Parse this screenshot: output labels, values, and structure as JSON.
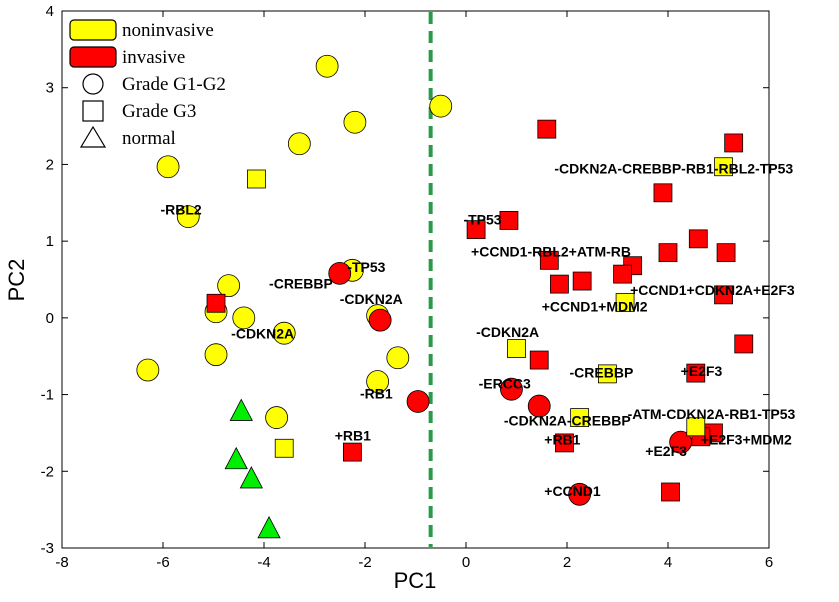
{
  "chart_data": {
    "type": "scatter",
    "xlabel": "PC1",
    "ylabel": "PC2",
    "xlim": [
      -8,
      6
    ],
    "ylim": [
      -3,
      4
    ],
    "xticks": [
      "-8",
      "-6",
      "-4",
      "-2",
      "0",
      "2",
      "4",
      "6"
    ],
    "yticks": [
      "-3",
      "-2",
      "-1",
      "0",
      "1",
      "2",
      "3",
      "4"
    ],
    "xtick_values": [
      -8,
      -6,
      -4,
      -2,
      0,
      2,
      4,
      6
    ],
    "ytick_values": [
      -3,
      -2,
      -1,
      0,
      1,
      2,
      3,
      4
    ],
    "grid": false,
    "divider": {
      "x": -0.7,
      "color": "#2a9a4a",
      "style": "dashed"
    },
    "colors": {
      "noninvasive": "#ffff00",
      "invasive": "#ff0000",
      "normal": "#00ee00"
    },
    "legend": {
      "placement": "top-left",
      "entries": [
        {
          "label": "noninvasive",
          "swatch": "noninvasive"
        },
        {
          "label": "invasive",
          "swatch": "invasive"
        },
        {
          "label": "Grade G1-G2",
          "shape": "circle"
        },
        {
          "label": "Grade G3",
          "shape": "square"
        },
        {
          "label": "normal",
          "shape": "triangle"
        }
      ]
    },
    "points": [
      {
        "x": -2.75,
        "y": 3.28,
        "shape": "circle",
        "cls": "noninvasive"
      },
      {
        "x": -2.2,
        "y": 2.55,
        "shape": "circle",
        "cls": "noninvasive"
      },
      {
        "x": -3.3,
        "y": 2.27,
        "shape": "circle",
        "cls": "noninvasive"
      },
      {
        "x": -5.9,
        "y": 1.97,
        "shape": "circle",
        "cls": "noninvasive"
      },
      {
        "x": -5.5,
        "y": 1.32,
        "shape": "circle",
        "cls": "noninvasive"
      },
      {
        "x": -4.7,
        "y": 0.42,
        "shape": "circle",
        "cls": "noninvasive"
      },
      {
        "x": -4.95,
        "y": 0.08,
        "shape": "circle",
        "cls": "noninvasive"
      },
      {
        "x": -4.4,
        "y": 0.0,
        "shape": "circle",
        "cls": "noninvasive"
      },
      {
        "x": -3.6,
        "y": -0.2,
        "shape": "circle",
        "cls": "noninvasive"
      },
      {
        "x": -4.95,
        "y": -0.48,
        "shape": "circle",
        "cls": "noninvasive"
      },
      {
        "x": -6.3,
        "y": -0.68,
        "shape": "circle",
        "cls": "noninvasive"
      },
      {
        "x": -2.25,
        "y": 0.62,
        "shape": "circle",
        "cls": "noninvasive"
      },
      {
        "x": -1.75,
        "y": 0.03,
        "shape": "circle",
        "cls": "noninvasive"
      },
      {
        "x": -1.35,
        "y": -0.52,
        "shape": "circle",
        "cls": "noninvasive"
      },
      {
        "x": -1.75,
        "y": -0.83,
        "shape": "circle",
        "cls": "noninvasive"
      },
      {
        "x": -3.75,
        "y": -1.3,
        "shape": "circle",
        "cls": "noninvasive"
      },
      {
        "x": -0.5,
        "y": 2.76,
        "shape": "circle",
        "cls": "noninvasive"
      },
      {
        "x": -4.15,
        "y": 1.81,
        "shape": "square",
        "cls": "noninvasive"
      },
      {
        "x": -3.6,
        "y": -1.7,
        "shape": "square",
        "cls": "noninvasive"
      },
      {
        "x": -2.5,
        "y": 0.58,
        "shape": "circle",
        "cls": "invasive"
      },
      {
        "x": -1.7,
        "y": -0.03,
        "shape": "circle",
        "cls": "invasive"
      },
      {
        "x": -0.95,
        "y": -1.09,
        "shape": "circle",
        "cls": "invasive"
      },
      {
        "x": -4.95,
        "y": 0.19,
        "shape": "square",
        "cls": "invasive"
      },
      {
        "x": -2.25,
        "y": -1.75,
        "shape": "square",
        "cls": "invasive"
      },
      {
        "x": -4.45,
        "y": -1.22,
        "shape": "triangle",
        "cls": "normal"
      },
      {
        "x": -4.55,
        "y": -1.85,
        "shape": "triangle",
        "cls": "normal"
      },
      {
        "x": -4.25,
        "y": -2.1,
        "shape": "triangle",
        "cls": "normal"
      },
      {
        "x": -3.9,
        "y": -2.75,
        "shape": "triangle",
        "cls": "normal"
      },
      {
        "x": 0.9,
        "y": -0.93,
        "shape": "circle",
        "cls": "invasive"
      },
      {
        "x": 1.45,
        "y": -1.15,
        "shape": "circle",
        "cls": "invasive"
      },
      {
        "x": 2.25,
        "y": -2.3,
        "shape": "circle",
        "cls": "invasive"
      },
      {
        "x": 4.25,
        "y": -1.62,
        "shape": "circle",
        "cls": "invasive"
      },
      {
        "x": 1.6,
        "y": 2.46,
        "shape": "square",
        "cls": "invasive"
      },
      {
        "x": 5.3,
        "y": 2.28,
        "shape": "square",
        "cls": "invasive"
      },
      {
        "x": 3.9,
        "y": 1.63,
        "shape": "square",
        "cls": "invasive"
      },
      {
        "x": 0.85,
        "y": 1.27,
        "shape": "square",
        "cls": "invasive"
      },
      {
        "x": 0.2,
        "y": 1.15,
        "shape": "square",
        "cls": "invasive"
      },
      {
        "x": 4.6,
        "y": 1.03,
        "shape": "square",
        "cls": "invasive"
      },
      {
        "x": 4.0,
        "y": 0.85,
        "shape": "square",
        "cls": "invasive"
      },
      {
        "x": 5.15,
        "y": 0.85,
        "shape": "square",
        "cls": "invasive"
      },
      {
        "x": 1.65,
        "y": 0.75,
        "shape": "square",
        "cls": "invasive"
      },
      {
        "x": 1.85,
        "y": 0.44,
        "shape": "square",
        "cls": "invasive"
      },
      {
        "x": 2.3,
        "y": 0.48,
        "shape": "square",
        "cls": "invasive"
      },
      {
        "x": 3.3,
        "y": 0.68,
        "shape": "square",
        "cls": "invasive"
      },
      {
        "x": 3.1,
        "y": 0.57,
        "shape": "square",
        "cls": "invasive"
      },
      {
        "x": 5.1,
        "y": 0.3,
        "shape": "square",
        "cls": "invasive"
      },
      {
        "x": 5.5,
        "y": -0.34,
        "shape": "square",
        "cls": "invasive"
      },
      {
        "x": 1.45,
        "y": -0.55,
        "shape": "square",
        "cls": "invasive"
      },
      {
        "x": 4.55,
        "y": -0.72,
        "shape": "square",
        "cls": "invasive"
      },
      {
        "x": 1.95,
        "y": -1.63,
        "shape": "square",
        "cls": "invasive"
      },
      {
        "x": 4.9,
        "y": -1.5,
        "shape": "square",
        "cls": "invasive"
      },
      {
        "x": 4.65,
        "y": -1.55,
        "shape": "square",
        "cls": "invasive"
      },
      {
        "x": 4.05,
        "y": -2.27,
        "shape": "square",
        "cls": "invasive"
      },
      {
        "x": 5.1,
        "y": 1.97,
        "shape": "square",
        "cls": "noninvasive"
      },
      {
        "x": 3.15,
        "y": 0.2,
        "shape": "square",
        "cls": "noninvasive"
      },
      {
        "x": 1.0,
        "y": -0.4,
        "shape": "square",
        "cls": "noninvasive"
      },
      {
        "x": 2.8,
        "y": -0.73,
        "shape": "square",
        "cls": "noninvasive"
      },
      {
        "x": 2.25,
        "y": -1.3,
        "shape": "square",
        "cls": "noninvasive"
      },
      {
        "x": 4.55,
        "y": -1.42,
        "shape": "square",
        "cls": "noninvasive"
      }
    ],
    "annotations": [
      {
        "text": "-RBL2",
        "x": -6.05,
        "y": 1.35
      },
      {
        "text": "-CREBBP",
        "x": -3.9,
        "y": 0.38
      },
      {
        "text": "-TP53",
        "x": -2.35,
        "y": 0.6
      },
      {
        "text": "-CDKN2A",
        "x": -2.5,
        "y": 0.18
      },
      {
        "text": "-CDKN2A",
        "x": -4.65,
        "y": -0.27
      },
      {
        "text": "-RB1",
        "x": -2.1,
        "y": -1.05
      },
      {
        "text": "+RB1",
        "x": -2.6,
        "y": -1.6
      },
      {
        "text": "-CDKN2A-CREBBP-RB1-RBL2-TP53",
        "x": 1.75,
        "y": 1.88
      },
      {
        "text": "-TP53",
        "x": -0.05,
        "y": 1.22
      },
      {
        "text": "+CCND1-RBL2+ATM-RB",
        "x": 0.1,
        "y": 0.8
      },
      {
        "text": "+CCND1+MDM2",
        "x": 1.5,
        "y": 0.08
      },
      {
        "text": "+CCND1+CDKN2A+E2F3",
        "x": 3.25,
        "y": 0.3
      },
      {
        "text": "-CDKN2A",
        "x": 0.2,
        "y": -0.25
      },
      {
        "text": "-CREBBP",
        "x": 2.05,
        "y": -0.78
      },
      {
        "text": "+E2F3",
        "x": 4.25,
        "y": -0.76
      },
      {
        "text": "-ERCC3",
        "x": 0.25,
        "y": -0.92
      },
      {
        "text": "-ATM-CDKN2A-RB1-TP53",
        "x": 3.2,
        "y": -1.32
      },
      {
        "text": "-CDKN2A-CREBBP",
        "x": 0.75,
        "y": -1.4
      },
      {
        "text": "+RB1",
        "x": 1.55,
        "y": -1.65
      },
      {
        "text": "+E2F3+MDM2",
        "x": 4.65,
        "y": -1.65
      },
      {
        "text": "+E2F3",
        "x": 3.55,
        "y": -1.8
      },
      {
        "text": "+CCND1",
        "x": 1.55,
        "y": -2.32
      }
    ]
  }
}
